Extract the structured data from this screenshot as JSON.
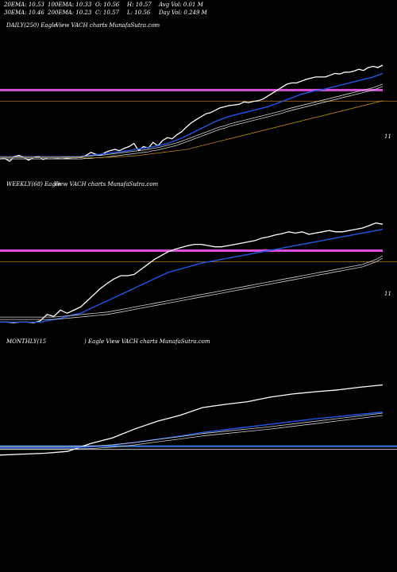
{
  "header": {
    "row1": [
      "20EMA: 10.53",
      "100EMA: 10.33",
      "O: 10.56",
      "H: 10.57",
      "Avg Vol: 0.01 M"
    ],
    "row2": [
      "30EMA: 10.46",
      "200EMA: 10.23",
      "C: 10.57",
      "L: 10.56",
      "Day Vol: 0.249 M"
    ]
  },
  "panels": {
    "daily": {
      "caption_a": "DAILY(250) Eagle",
      "caption_b": "View VACH charts MunafaSutra.com",
      "level_label": "11"
    },
    "weekly": {
      "caption_a": "WEEKLY(68) Eagle",
      "caption_b": "View VACH charts MunafaSutra.com",
      "level_label": "11"
    },
    "monthly": {
      "caption_a": "MONTHLY(15",
      "caption_b": ") Eagle  View VACH charts MunafaSutra.com"
    }
  },
  "colors": {
    "price": "#ffffff",
    "ema_fast": "#1f57e6",
    "ema_slow": "#cfcfcf",
    "ema_long": "#b8860b",
    "level_magenta": "#d94fd9",
    "level_blue": "#3a7fe0",
    "level_brown": "#8b5a10"
  },
  "chart_data": [
    {
      "type": "line",
      "name": "daily",
      "ylim": [
        9.6,
        11.5
      ],
      "level": 11,
      "series": [
        {
          "name": "price",
          "values": [
            9.84,
            9.85,
            9.8,
            9.88,
            9.9,
            9.86,
            9.82,
            9.86,
            9.88,
            9.83,
            9.86,
            9.86,
            9.85,
            9.86,
            9.85,
            9.86,
            9.86,
            9.87,
            9.9,
            9.95,
            9.92,
            9.9,
            9.95,
            9.98,
            10.0,
            9.98,
            10.02,
            10.05,
            10.1,
            9.98,
            10.05,
            10.02,
            10.12,
            10.06,
            10.15,
            10.2,
            10.18,
            10.25,
            10.3,
            10.38,
            10.45,
            10.5,
            10.55,
            10.6,
            10.62,
            10.66,
            10.7,
            10.72,
            10.74,
            10.75,
            10.76,
            10.8,
            10.79,
            10.81,
            10.82,
            10.85,
            10.9,
            10.95,
            11.0,
            11.05,
            11.1,
            11.12,
            11.12,
            11.15,
            11.18,
            11.2,
            11.22,
            11.22,
            11.22,
            11.25,
            11.28,
            11.27,
            11.3,
            11.3,
            11.32,
            11.35,
            11.33,
            11.38,
            11.4,
            11.38,
            11.42
          ]
        },
        {
          "name": "ema_fast",
          "values": [
            9.86,
            9.86,
            9.86,
            9.86,
            9.86,
            9.86,
            9.86,
            9.86,
            9.86,
            9.86,
            9.86,
            9.86,
            9.86,
            9.86,
            9.87,
            9.87,
            9.87,
            9.88,
            9.89,
            9.9,
            9.91,
            9.92,
            9.93,
            9.94,
            9.95,
            9.96,
            9.97,
            9.98,
            10.0,
            10.01,
            10.02,
            10.03,
            10.05,
            10.06,
            10.08,
            10.1,
            10.13,
            10.16,
            10.19,
            10.23,
            10.27,
            10.31,
            10.35,
            10.39,
            10.43,
            10.47,
            10.5,
            10.53,
            10.56,
            10.58,
            10.6,
            10.62,
            10.64,
            10.66,
            10.68,
            10.7,
            10.72,
            10.75,
            10.78,
            10.81,
            10.84,
            10.87,
            10.9,
            10.93,
            10.95,
            10.97,
            10.99,
            11.0,
            11.02,
            11.04,
            11.06,
            11.08,
            11.1,
            11.12,
            11.14,
            11.16,
            11.18,
            11.2,
            11.22,
            11.25,
            11.28
          ]
        },
        {
          "name": "ema_slow",
          "values": [
            9.86,
            9.86,
            9.86,
            9.86,
            9.86,
            9.86,
            9.86,
            9.86,
            9.86,
            9.86,
            9.86,
            9.86,
            9.86,
            9.86,
            9.86,
            9.86,
            9.86,
            9.86,
            9.87,
            9.87,
            9.88,
            9.88,
            9.89,
            9.9,
            9.91,
            9.92,
            9.93,
            9.94,
            9.95,
            9.96,
            9.97,
            9.98,
            10.0,
            10.01,
            10.03,
            10.05,
            10.07,
            10.09,
            10.12,
            10.15,
            10.18,
            10.21,
            10.24,
            10.27,
            10.3,
            10.33,
            10.36,
            10.38,
            10.41,
            10.43,
            10.45,
            10.47,
            10.49,
            10.51,
            10.53,
            10.55,
            10.57,
            10.59,
            10.61,
            10.63,
            10.66,
            10.68,
            10.7,
            10.72,
            10.74,
            10.76,
            10.78,
            10.8,
            10.82,
            10.84,
            10.86,
            10.88,
            10.9,
            10.92,
            10.94,
            10.96,
            10.98,
            11.0,
            11.02,
            11.05,
            11.08
          ]
        },
        {
          "name": "ema_long",
          "values": [
            9.86,
            9.86,
            9.86,
            9.86,
            9.86,
            9.86,
            9.86,
            9.86,
            9.86,
            9.86,
            9.86,
            9.86,
            9.86,
            9.86,
            9.86,
            9.86,
            9.86,
            9.86,
            9.86,
            9.86,
            9.86,
            9.86,
            9.87,
            9.87,
            9.87,
            9.88,
            9.88,
            9.89,
            9.89,
            9.9,
            9.91,
            9.92,
            9.93,
            9.94,
            9.95,
            9.96,
            9.97,
            9.98,
            9.99,
            10.0,
            10.02,
            10.04,
            10.06,
            10.08,
            10.1,
            10.12,
            10.14,
            10.16,
            10.18,
            10.2,
            10.22,
            10.24,
            10.26,
            10.28,
            10.3,
            10.32,
            10.34,
            10.36,
            10.38,
            10.4,
            10.42,
            10.44,
            10.46,
            10.48,
            10.5,
            10.52,
            10.54,
            10.56,
            10.58,
            10.6,
            10.62,
            10.64,
            10.66,
            10.68,
            10.7,
            10.72,
            10.74,
            10.76,
            10.78,
            10.8,
            10.82
          ]
        }
      ]
    },
    {
      "type": "line",
      "name": "weekly",
      "ylim": [
        9.7,
        11.5
      ],
      "level": 11,
      "series": [
        {
          "name": "price",
          "values": [
            9.86,
            9.86,
            9.85,
            9.86,
            9.86,
            9.85,
            9.88,
            9.98,
            9.95,
            10.05,
            10.0,
            10.05,
            10.1,
            10.2,
            10.3,
            10.4,
            10.48,
            10.55,
            10.6,
            10.6,
            10.62,
            10.7,
            10.78,
            10.86,
            10.92,
            10.98,
            11.02,
            11.05,
            11.08,
            11.1,
            11.1,
            11.08,
            11.06,
            11.06,
            11.08,
            11.1,
            11.12,
            11.14,
            11.16,
            11.2,
            11.22,
            11.25,
            11.27,
            11.3,
            11.28,
            11.3,
            11.26,
            11.28,
            11.3,
            11.32,
            11.3,
            11.3,
            11.32,
            11.34,
            11.36,
            11.4,
            11.44,
            11.42
          ]
        },
        {
          "name": "ema_fast",
          "values": [
            9.86,
            9.86,
            9.86,
            9.86,
            9.86,
            9.86,
            9.86,
            9.88,
            9.9,
            9.92,
            9.95,
            9.98,
            10.0,
            10.05,
            10.1,
            10.15,
            10.2,
            10.25,
            10.3,
            10.35,
            10.4,
            10.45,
            10.5,
            10.55,
            10.6,
            10.65,
            10.68,
            10.71,
            10.74,
            10.77,
            10.8,
            10.82,
            10.84,
            10.86,
            10.88,
            10.9,
            10.92,
            10.94,
            10.96,
            10.98,
            11.0,
            11.02,
            11.04,
            11.06,
            11.08,
            11.1,
            11.12,
            11.14,
            11.16,
            11.18,
            11.2,
            11.22,
            11.24,
            11.26,
            11.28,
            11.3,
            11.32,
            11.34
          ]
        },
        {
          "name": "ema_slow",
          "values": [
            9.92,
            9.92,
            9.92,
            9.92,
            9.92,
            9.92,
            9.92,
            9.92,
            9.92,
            9.93,
            9.94,
            9.95,
            9.96,
            9.97,
            9.98,
            9.99,
            10.0,
            10.02,
            10.04,
            10.06,
            10.08,
            10.1,
            10.12,
            10.14,
            10.16,
            10.18,
            10.2,
            10.22,
            10.24,
            10.26,
            10.28,
            10.3,
            10.32,
            10.34,
            10.36,
            10.38,
            10.4,
            10.42,
            10.44,
            10.46,
            10.48,
            10.5,
            10.52,
            10.54,
            10.56,
            10.58,
            10.6,
            10.62,
            10.64,
            10.66,
            10.68,
            10.7,
            10.72,
            10.74,
            10.76,
            10.8,
            10.84,
            10.9
          ]
        }
      ]
    },
    {
      "type": "line",
      "name": "monthly",
      "ylim": [
        8.8,
        11.4
      ],
      "series": [
        {
          "name": "price",
          "values": [
            9.7,
            9.72,
            9.74,
            9.78,
            9.95,
            10.08,
            10.28,
            10.45,
            10.58,
            10.75,
            10.82,
            10.88,
            10.98,
            11.05,
            11.1,
            11.14,
            11.2,
            11.25
          ]
        },
        {
          "name": "ema_fast",
          "values": [
            9.86,
            9.86,
            9.86,
            9.86,
            9.88,
            9.92,
            9.98,
            10.05,
            10.12,
            10.2,
            10.26,
            10.32,
            10.38,
            10.44,
            10.5,
            10.55,
            10.6,
            10.65
          ]
        },
        {
          "name": "ema_slow",
          "values": [
            9.86,
            9.86,
            9.86,
            9.86,
            9.87,
            9.9,
            9.95,
            10.02,
            10.08,
            10.15,
            10.2,
            10.25,
            10.3,
            10.36,
            10.42,
            10.48,
            10.54,
            10.6
          ]
        }
      ]
    }
  ]
}
